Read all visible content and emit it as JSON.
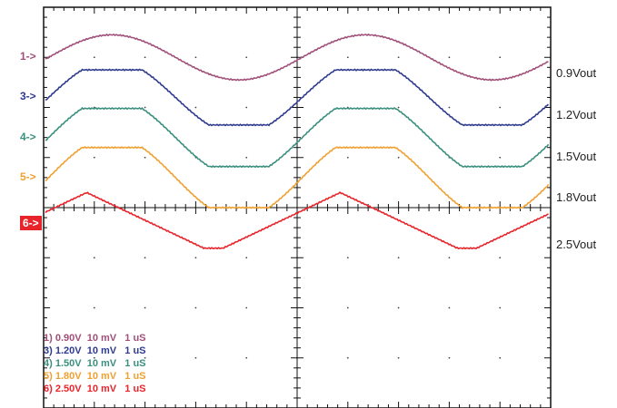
{
  "chart_data": {
    "type": "line",
    "title": "",
    "xlabel": "",
    "ylabel": "",
    "grid": true,
    "x_divisions": 10,
    "y_divisions": 8,
    "periods_shown": 2,
    "series": [
      {
        "channel": "1",
        "marker": "1->",
        "side_label": "0.9Vout",
        "legend": "1) 0.90V  10 mV   1 uS",
        "color": "#a0507a",
        "shape": "sine",
        "offset_div": 1.0,
        "amp_div": 0.45
      },
      {
        "channel": "3",
        "marker": "3->",
        "side_label": "1.2Vout",
        "legend": "3) 1.20V  10 mV   1 uS",
        "color": "#2e3b8f",
        "shape": "clipped",
        "offset_div": 1.8,
        "amp_div": 0.55
      },
      {
        "channel": "4",
        "marker": "4->",
        "side_label": "1.5Vout",
        "legend": "4) 1.50V  10 mV   1 uS",
        "color": "#3a8f7e",
        "shape": "clipped",
        "offset_div": 2.6,
        "amp_div": 0.58
      },
      {
        "channel": "5",
        "marker": "5->",
        "side_label": "1.8Vout",
        "legend": "5) 1.80V  10 mV   1 uS",
        "color": "#f0a030",
        "shape": "clipped",
        "offset_div": 3.4,
        "amp_div": 0.6
      },
      {
        "channel": "6",
        "marker": "6->",
        "side_label": "2.5Vout",
        "legend": "6) 2.50V  10 mV   1 uS",
        "color": "#e8242b",
        "shape": "triangle",
        "offset_div": 4.3,
        "amp_div": 0.6,
        "active": true
      }
    ]
  }
}
